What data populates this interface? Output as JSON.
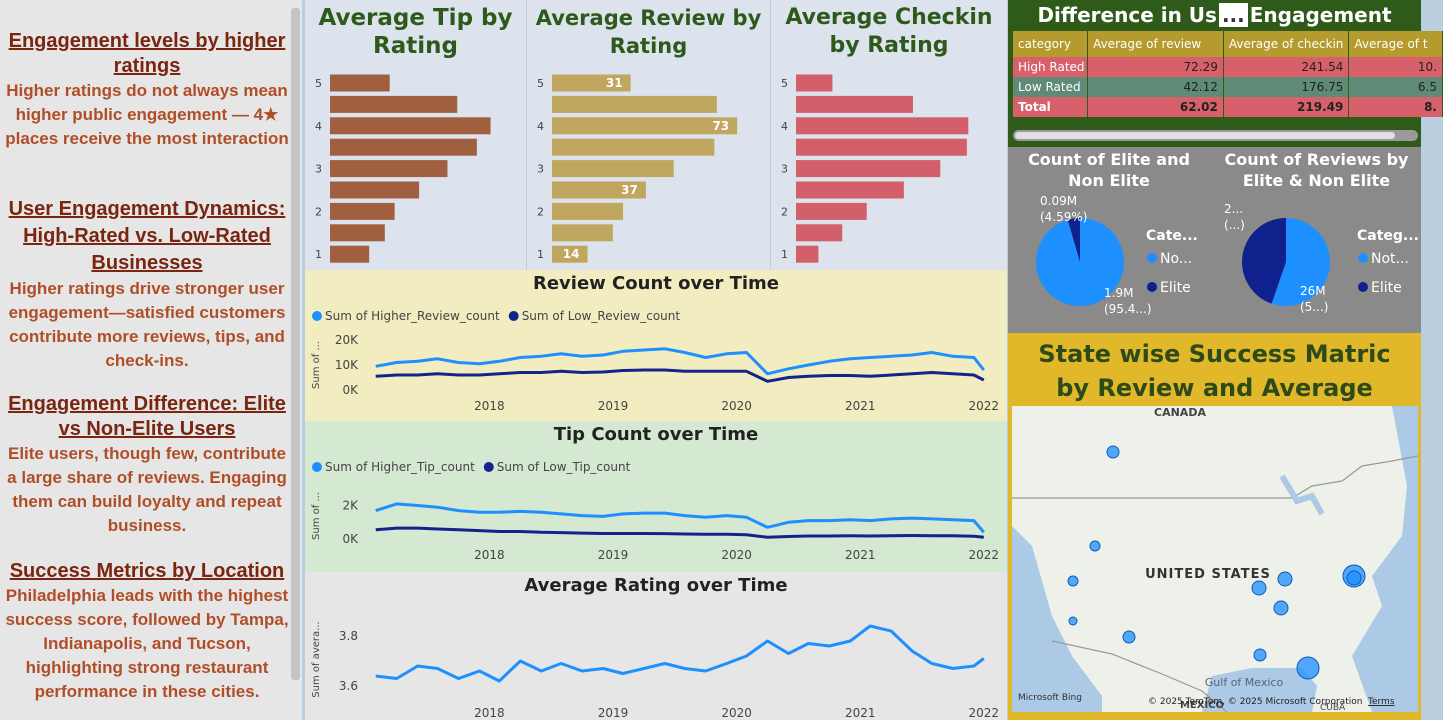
{
  "narrative": [
    {
      "heading": "Engagement levels by higher ratings",
      "text": "Higher ratings do not always mean higher public engagement — 4★ places receive the most interaction"
    },
    {
      "heading": "User Engagement Dynamics: High-Rated vs. Low-Rated Businesses",
      "text": "Higher ratings drive stronger user engagement—satisfied customers contribute more reviews, tips, and check-ins."
    },
    {
      "heading": "Engagement Difference: Elite vs Non-Elite Users",
      "text": "Elite users, though few, contribute a large share of reviews. Engaging them can build loyalty and repeat business."
    },
    {
      "heading": "Success Metrics by Location",
      "text": "Philadelphia leads with the highest success score, followed by Tampa, Indianapolis, and Tucson, highlighting strong restaurant performance in these cities."
    }
  ],
  "chart_data": [
    {
      "type": "hbar",
      "title": "Average Tip by Rating",
      "categories": [
        "5",
        null,
        "4",
        null,
        "3",
        null,
        "2",
        null,
        "1"
      ],
      "values": [
        0.61,
        1.3,
        1.64,
        1.5,
        1.2,
        0.91,
        0.66,
        0.56,
        0.4
      ],
      "xlim": [
        0,
        1.9
      ],
      "color": "#a0603f",
      "show_label": [
        false,
        false,
        false,
        false,
        false,
        false,
        false,
        false,
        false
      ]
    },
    {
      "type": "hbar",
      "title": "Average Review by Rating",
      "categories": [
        "5",
        null,
        "4",
        null,
        "3",
        null,
        "2",
        null,
        "1"
      ],
      "values": [
        31,
        65,
        73,
        64,
        48,
        37,
        28,
        24,
        14
      ],
      "xlim": [
        0,
        82
      ],
      "color": "#c1a660",
      "show_label": [
        true,
        false,
        true,
        false,
        false,
        true,
        false,
        false,
        true
      ]
    },
    {
      "type": "hbar",
      "title": "Average Checkin by Rating",
      "categories": [
        "5",
        null,
        "4",
        null,
        "3",
        null,
        "2",
        null,
        "1"
      ],
      "values": [
        52,
        167,
        246,
        244,
        206,
        154,
        101,
        66,
        32
      ],
      "xlim": [
        0,
        287
      ],
      "color": "#d25f69",
      "show_label": [
        false,
        false,
        false,
        false,
        false,
        false,
        false,
        false,
        false
      ]
    },
    {
      "type": "line",
      "title": "Review Count over Time",
      "y_label": "Sum of ...",
      "x": [
        2017.08,
        2017.25,
        2017.42,
        2017.58,
        2017.75,
        2017.92,
        2018.08,
        2018.25,
        2018.42,
        2018.58,
        2018.75,
        2018.92,
        2019.08,
        2019.25,
        2019.42,
        2019.58,
        2019.75,
        2019.92,
        2020.08,
        2020.25,
        2020.42,
        2020.58,
        2020.75,
        2020.92,
        2021.08,
        2021.25,
        2021.42,
        2021.58,
        2021.75,
        2021.92,
        2022.0
      ],
      "series": [
        {
          "name": "Sum of Higher_Review_count",
          "color": "#1e8fff",
          "values": [
            9500,
            11000,
            11500,
            12500,
            11000,
            10500,
            11500,
            13000,
            13500,
            14500,
            13500,
            14000,
            15500,
            16000,
            16500,
            15000,
            13000,
            14500,
            15000,
            6500,
            8500,
            10000,
            11500,
            12500,
            13000,
            13500,
            14000,
            15000,
            13500,
            13000,
            8000
          ]
        },
        {
          "name": "Sum of Low_Review_count",
          "color": "#14238c",
          "values": [
            5500,
            6000,
            6000,
            6500,
            6000,
            6000,
            6500,
            7000,
            7000,
            7500,
            7000,
            7200,
            7800,
            8000,
            8000,
            7500,
            7500,
            7500,
            7500,
            3500,
            5000,
            5500,
            5800,
            5800,
            5500,
            6000,
            6500,
            7000,
            6500,
            6000,
            4000
          ]
        }
      ],
      "xlim": [
        2017.05,
        2022.05
      ],
      "xticks": [
        2018,
        2019,
        2020,
        2021,
        2022
      ],
      "ylim": [
        0,
        20000
      ],
      "yticks": [
        {
          "value": 0,
          "label": "0K"
        },
        {
          "value": 10000,
          "label": "10K"
        },
        {
          "value": 20000,
          "label": "20K"
        }
      ]
    },
    {
      "type": "line",
      "title": "Tip Count over Time",
      "y_label": "Sum of ...",
      "x": [
        2017.08,
        2017.25,
        2017.42,
        2017.58,
        2017.75,
        2017.92,
        2018.08,
        2018.25,
        2018.42,
        2018.58,
        2018.75,
        2018.92,
        2019.08,
        2019.25,
        2019.42,
        2019.58,
        2019.75,
        2019.92,
        2020.08,
        2020.25,
        2020.42,
        2020.58,
        2020.75,
        2020.92,
        2021.08,
        2021.25,
        2021.42,
        2021.58,
        2021.75,
        2021.92,
        2022.0
      ],
      "series": [
        {
          "name": "Sum of Higher_Tip_count",
          "color": "#1e8fff",
          "values": [
            1700,
            2100,
            2000,
            1900,
            1700,
            1600,
            1600,
            1650,
            1600,
            1500,
            1400,
            1350,
            1500,
            1550,
            1550,
            1400,
            1300,
            1400,
            1300,
            700,
            1000,
            1100,
            1100,
            1150,
            1100,
            1200,
            1250,
            1200,
            1150,
            1100,
            400
          ]
        },
        {
          "name": "Sum of Low_Tip_count",
          "color": "#14238c",
          "values": [
            550,
            650,
            650,
            600,
            550,
            500,
            450,
            450,
            400,
            380,
            350,
            330,
            330,
            330,
            320,
            300,
            280,
            280,
            250,
            100,
            150,
            180,
            180,
            190,
            180,
            200,
            210,
            200,
            190,
            170,
            100
          ]
        }
      ],
      "xlim": [
        2017.05,
        2022.05
      ],
      "xticks": [
        2018,
        2019,
        2020,
        2021,
        2022
      ],
      "ylim": [
        0,
        2750
      ],
      "yticks": [
        {
          "value": 0,
          "label": "0K"
        },
        {
          "value": 2000,
          "label": "2K"
        }
      ]
    },
    {
      "type": "line",
      "title": "Average Rating over Time",
      "y_label": "Sum of avera...",
      "x": [
        2017.08,
        2017.25,
        2017.42,
        2017.58,
        2017.75,
        2017.92,
        2018.08,
        2018.25,
        2018.42,
        2018.58,
        2018.75,
        2018.92,
        2019.08,
        2019.25,
        2019.42,
        2019.58,
        2019.75,
        2019.92,
        2020.08,
        2020.25,
        2020.42,
        2020.58,
        2020.75,
        2020.92,
        2021.08,
        2021.25,
        2021.42,
        2021.58,
        2021.75,
        2021.92,
        2022.0
      ],
      "series": [
        {
          "name": "Sum of average_rating",
          "color": "#1e8fff",
          "values": [
            3.64,
            3.63,
            3.68,
            3.67,
            3.63,
            3.66,
            3.62,
            3.7,
            3.66,
            3.69,
            3.66,
            3.67,
            3.65,
            3.67,
            3.69,
            3.67,
            3.66,
            3.69,
            3.72,
            3.78,
            3.73,
            3.77,
            3.76,
            3.78,
            3.84,
            3.82,
            3.74,
            3.69,
            3.67,
            3.68,
            3.71
          ]
        }
      ],
      "legend": false,
      "xlim": [
        2017.05,
        2022.05
      ],
      "xticks": [
        2018,
        2019,
        2020,
        2021,
        2022
      ],
      "ylim": [
        3.556,
        3.856
      ],
      "yticks": [
        3.6,
        3.8
      ]
    },
    {
      "type": "pie",
      "title": "Count of Elite and Non Elite",
      "legend_title": "Cate...",
      "categories": [
        "No...",
        "Elite"
      ],
      "colors": [
        "#1e8fff",
        "#10208c"
      ],
      "values": [
        1.9,
        0.09
      ],
      "value_labels": [
        [
          "1.9M",
          "(95.4...)"
        ],
        [
          "0.09M",
          "(4.59%)"
        ]
      ]
    },
    {
      "type": "pie",
      "title": "Count of Reviews by Elite & Non Elite",
      "legend_title": "Categ...",
      "categories": [
        "Not...",
        "Elite"
      ],
      "colors": [
        "#1e8fff",
        "#10208c"
      ],
      "values": [
        26,
        21
      ],
      "value_labels": [
        [
          "26M",
          "(5...)"
        ],
        [
          "2...",
          "(...)"
        ]
      ]
    }
  ],
  "table": {
    "title": "Difference in Us",
    "title_end": "Engagement",
    "menu": "...",
    "columns": [
      "category",
      "Average of review",
      "Average of checkin",
      "Average of t"
    ],
    "rows": [
      [
        "High Rated",
        "72.29",
        "241.54",
        "10."
      ],
      [
        "Low Rated",
        "42.12",
        "176.75",
        "6.5"
      ],
      [
        "Total",
        "62.02",
        "219.49",
        "8."
      ]
    ]
  },
  "map": {
    "title": "State wise Success Matric by Review and Average Rating",
    "labels": {
      "canada": "CANADA",
      "us": "UNITED STATES",
      "gulf": "Gulf of Mexico",
      "mexico": "MEXICO",
      "cuba": "CUBA"
    },
    "brand": "Microsoft Bing",
    "attribution": "© 2025 TomTom, © 2025 Microsoft Corporation",
    "terms": "Terms"
  }
}
